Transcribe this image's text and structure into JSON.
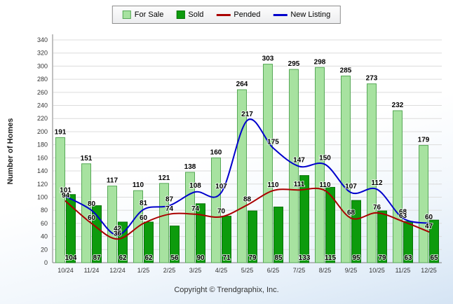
{
  "chart_data": {
    "type": "bar",
    "categories": [
      "10/24",
      "11/24",
      "12/24",
      "1/25",
      "2/25",
      "3/25",
      "4/25",
      "5/25",
      "6/25",
      "7/25",
      "8/25",
      "9/25",
      "10/25",
      "11/25",
      "12/25"
    ],
    "series": [
      {
        "name": "For Sale",
        "kind": "bar",
        "color": "#A7E2A0",
        "border": "#57A857",
        "values": [
          191,
          151,
          117,
          110,
          121,
          138,
          160,
          264,
          303,
          295,
          298,
          285,
          273,
          232,
          179
        ]
      },
      {
        "name": "Sold",
        "kind": "bar",
        "color": "#0D9B0D",
        "border": "#077307",
        "values": [
          104,
          87,
          62,
          62,
          56,
          90,
          71,
          79,
          85,
          133,
          115,
          95,
          79,
          63,
          65
        ]
      },
      {
        "name": "Pended",
        "kind": "line",
        "color": "#AA0000",
        "values": [
          94,
          60,
          36,
          60,
          74,
          74,
          70,
          88,
          110,
          111,
          110,
          68,
          76,
          63,
          47
        ]
      },
      {
        "name": "New Listing",
        "kind": "line",
        "color": "#0000CC",
        "values": [
          101,
          80,
          42,
          81,
          87,
          108,
          107,
          217,
          175,
          147,
          150,
          107,
          112,
          68,
          60
        ]
      }
    ],
    "ylabel": "Number of Homes",
    "ylim": [
      0,
      340
    ],
    "ytick_step": 20,
    "grid": true,
    "legend_position": "top",
    "footer": "Copyright © Trendgraphix, Inc."
  }
}
